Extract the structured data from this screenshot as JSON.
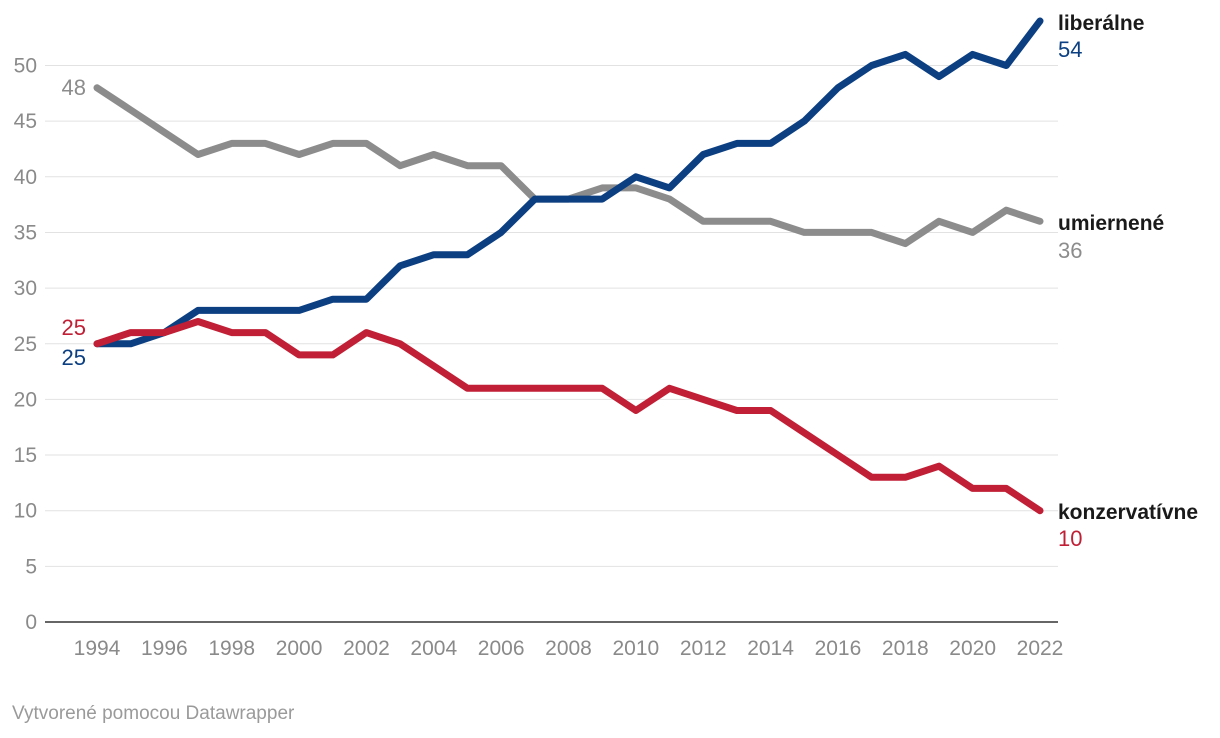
{
  "chart_data": {
    "type": "line",
    "title": "",
    "xlabel": "",
    "ylabel": "",
    "ylim": [
      0,
      54
    ],
    "grid": true,
    "y_ticks": [
      0,
      5,
      10,
      15,
      20,
      25,
      30,
      35,
      40,
      45,
      50
    ],
    "x_ticks": [
      1994,
      1996,
      1998,
      2000,
      2002,
      2004,
      2006,
      2008,
      2010,
      2012,
      2014,
      2016,
      2018,
      2020,
      2022
    ],
    "x": [
      1994,
      1995,
      1996,
      1997,
      1998,
      1999,
      2000,
      2001,
      2002,
      2003,
      2004,
      2005,
      2006,
      2007,
      2008,
      2009,
      2010,
      2011,
      2012,
      2013,
      2014,
      2015,
      2016,
      2017,
      2018,
      2019,
      2020,
      2021,
      2022
    ],
    "series": [
      {
        "key": "umiernene",
        "name": "umiernené",
        "color": "#8c8c8c",
        "start_label": "48",
        "end_label": "36",
        "values": [
          48,
          46,
          44,
          42,
          43,
          43,
          42,
          43,
          43,
          41,
          42,
          41,
          41,
          38,
          38,
          39,
          39,
          38,
          36,
          36,
          36,
          35,
          35,
          35,
          34,
          36,
          35,
          37,
          36
        ]
      },
      {
        "key": "liberalne",
        "name": "liberálne",
        "color": "#0b3f82",
        "start_label": "25",
        "end_label": "54",
        "values": [
          25,
          25,
          26,
          28,
          28,
          28,
          28,
          29,
          29,
          32,
          33,
          33,
          35,
          38,
          38,
          38,
          40,
          39,
          42,
          43,
          43,
          45,
          48,
          50,
          51,
          49,
          51,
          50,
          54
        ]
      },
      {
        "key": "konzervativne",
        "name": "konzervatívne",
        "color": "#c01f35",
        "start_label": "25",
        "end_label": "10",
        "values": [
          25,
          26,
          26,
          27,
          26,
          26,
          24,
          24,
          26,
          25,
          23,
          21,
          21,
          21,
          21,
          21,
          19,
          21,
          20,
          19,
          19,
          17,
          15,
          13,
          13,
          14,
          12,
          12,
          10
        ]
      }
    ]
  },
  "footer": {
    "credit": "Vytvorené pomocou Datawrapper"
  }
}
